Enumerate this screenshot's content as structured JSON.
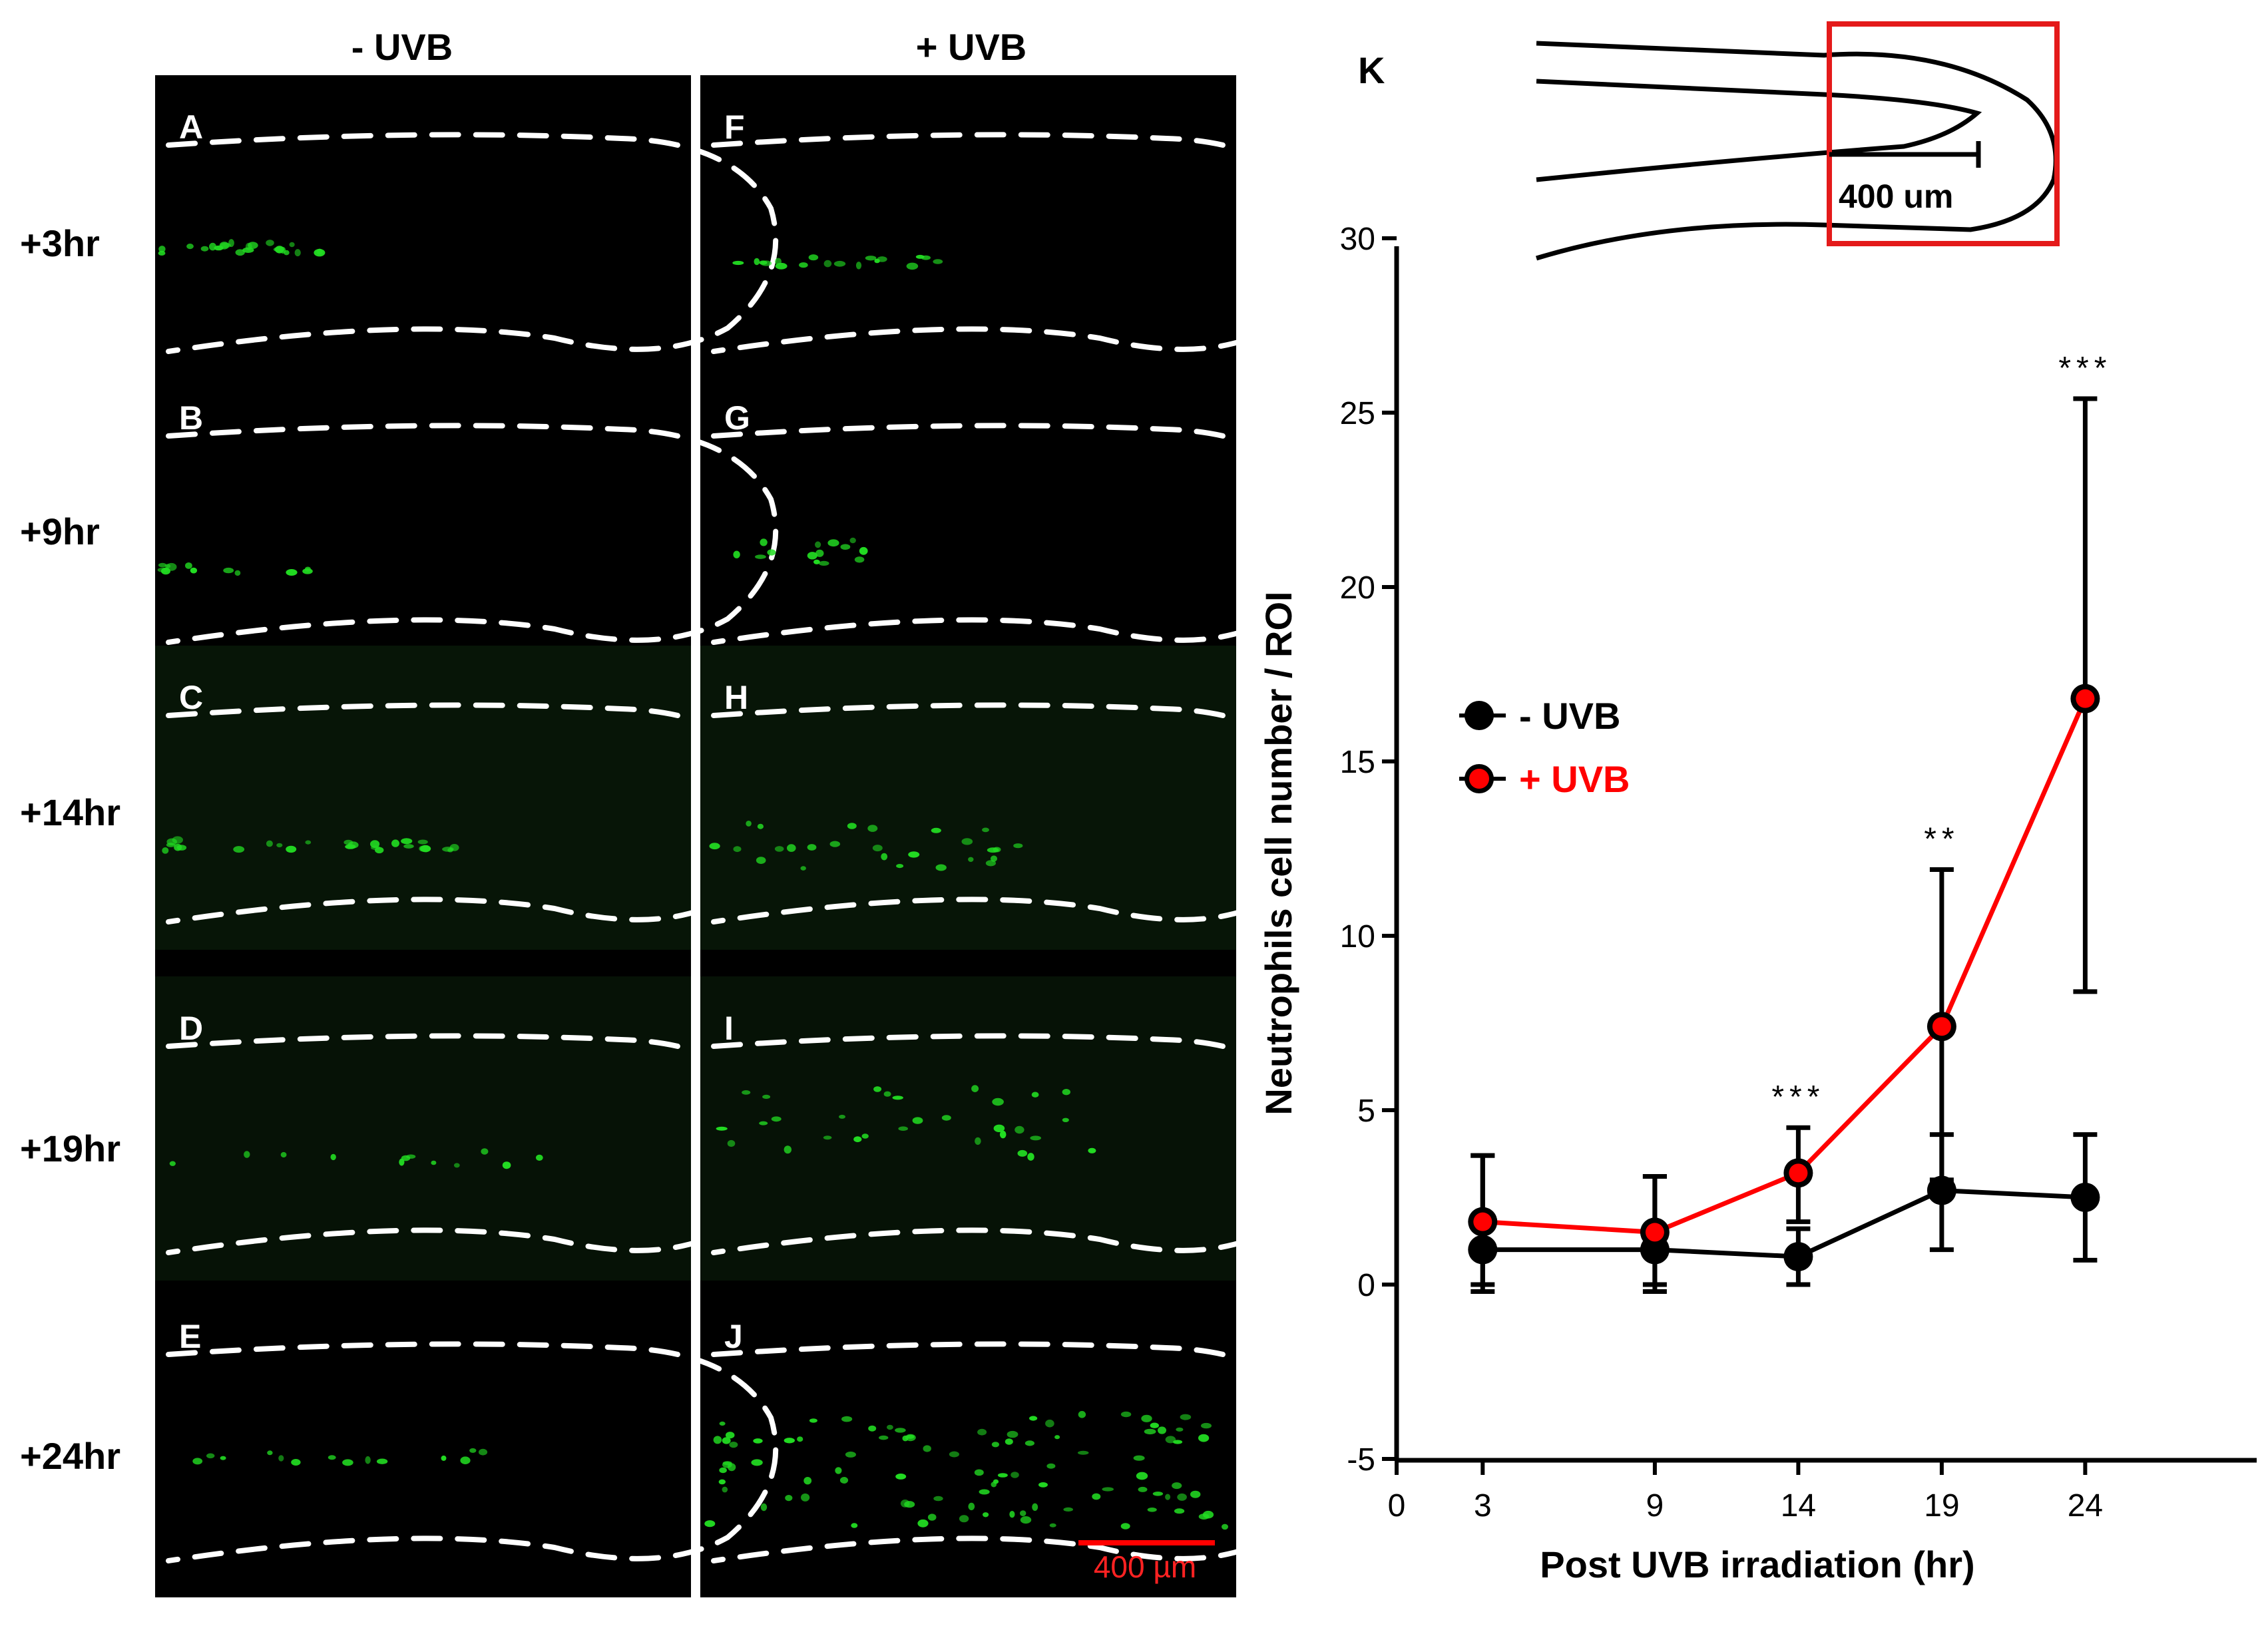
{
  "columns": {
    "minus": "- UVB",
    "plus": "+ UVB"
  },
  "rows": [
    "+3hr",
    "+9hr",
    "+14hr",
    "+19hr",
    "+24hr"
  ],
  "panels": {
    "minus": [
      "A",
      "B",
      "C",
      "D",
      "E"
    ],
    "plus": [
      "F",
      "G",
      "H",
      "I",
      "J"
    ]
  },
  "micrograph_scale_bar": "400 µm",
  "diagram": {
    "label": "K",
    "scale": "400 um"
  },
  "colors": {
    "minus_uvb": "#000000",
    "plus_uvb": "#ff0000",
    "fluorescence": "#22dd22",
    "background": "#000000"
  },
  "chart_data": {
    "type": "line",
    "xlabel": "Post UVB irradiation (hr)",
    "ylabel": "Neutrophils cell number / ROI",
    "xlim": [
      0,
      29
    ],
    "ylim": [
      -5,
      30
    ],
    "xticks": [
      0,
      3,
      9,
      14,
      19,
      24
    ],
    "yticks": [
      -5,
      0,
      5,
      10,
      15,
      20,
      25,
      30
    ],
    "x": [
      3,
      9,
      14,
      19,
      24
    ],
    "series": [
      {
        "name": "- UVB",
        "color": "#000000",
        "values": [
          1.0,
          1.0,
          0.8,
          2.7,
          2.5
        ],
        "err_low": [
          -0.2,
          -0.2,
          0.0,
          1.0,
          0.7
        ],
        "err_high": [
          3.7,
          3.1,
          1.6,
          4.3,
          4.3
        ]
      },
      {
        "name": "+ UVB",
        "color": "#ff0000",
        "values": [
          1.8,
          1.5,
          3.2,
          7.4,
          16.8
        ],
        "err_low": [
          0.0,
          0.0,
          1.8,
          3.0,
          8.4
        ],
        "err_high": [
          3.7,
          3.1,
          4.5,
          11.9,
          25.4
        ]
      }
    ],
    "annotations": [
      {
        "x": 14,
        "y": 4.5,
        "text": "***"
      },
      {
        "x": 19,
        "y": 11.9,
        "text": "**"
      },
      {
        "x": 24,
        "y": 25.4,
        "text": "***"
      }
    ]
  }
}
